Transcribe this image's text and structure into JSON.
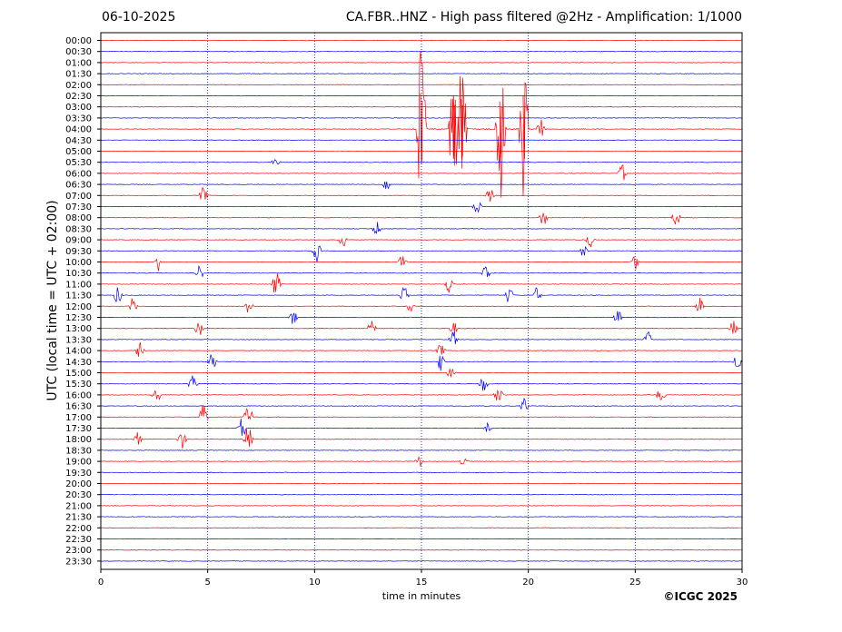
{
  "header": {
    "date": "06-10-2025",
    "title": "CA.FBR..HNZ - High pass filtered @2Hz - Amplification: 1/1000"
  },
  "copyright": "©ICGC 2025",
  "colors": {
    "trace_a": "#ff0000",
    "trace_b": "#0000ff",
    "grid": "#0000aa"
  },
  "chart_data": {
    "type": "line",
    "title": "CA.FBR..HNZ - High pass filtered @2Hz - Amplification: 1/1000",
    "xlabel": "time in minutes",
    "ylabel": "UTC (local time = UTC + 02:00)",
    "xlim": [
      0,
      30
    ],
    "x_ticks": [
      0,
      5,
      10,
      15,
      20,
      25,
      30
    ],
    "vertical_gridlines": [
      5,
      10,
      15,
      20,
      25
    ],
    "rows": [
      "00:00",
      "00:30",
      "01:00",
      "01:30",
      "02:00",
      "02:30",
      "03:00",
      "03:30",
      "04:00",
      "04:30",
      "05:00",
      "05:30",
      "06:00",
      "06:30",
      "07:00",
      "07:30",
      "08:00",
      "08:30",
      "09:00",
      "09:30",
      "10:00",
      "10:30",
      "11:00",
      "11:30",
      "12:00",
      "12:30",
      "13:00",
      "13:30",
      "14:00",
      "14:30",
      "15:00",
      "15:30",
      "16:00",
      "16:30",
      "17:00",
      "17:30",
      "18:00",
      "18:30",
      "19:00",
      "19:30",
      "20:00",
      "20:30",
      "21:00",
      "21:30",
      "22:00",
      "22:30",
      "23:00",
      "23:30"
    ],
    "row_colors": [
      "red",
      "blue"
    ],
    "events": [
      {
        "row": "04:00",
        "t": 15.0,
        "amp": 3.2
      },
      {
        "row": "04:00",
        "t": 16.5,
        "amp": 2.7
      },
      {
        "row": "04:00",
        "t": 16.9,
        "amp": 2.7
      },
      {
        "row": "04:00",
        "t": 18.7,
        "amp": 2.5
      },
      {
        "row": "04:00",
        "t": 19.8,
        "amp": 3.0
      },
      {
        "row": "04:00",
        "t": 20.6,
        "amp": 0.3
      },
      {
        "row": "05:30",
        "t": 8.2,
        "amp": 0.25
      },
      {
        "row": "06:00",
        "t": 24.4,
        "amp": 0.3
      },
      {
        "row": "06:30",
        "t": 13.4,
        "amp": 0.25
      },
      {
        "row": "07:00",
        "t": 4.8,
        "amp": 0.3
      },
      {
        "row": "07:00",
        "t": 18.2,
        "amp": 0.3
      },
      {
        "row": "07:30",
        "t": 17.6,
        "amp": 0.25
      },
      {
        "row": "08:00",
        "t": 20.7,
        "amp": 0.3
      },
      {
        "row": "08:00",
        "t": 26.9,
        "amp": 0.3
      },
      {
        "row": "08:30",
        "t": 12.9,
        "amp": 0.25
      },
      {
        "row": "09:00",
        "t": 11.3,
        "amp": 0.3
      },
      {
        "row": "09:00",
        "t": 22.9,
        "amp": 0.25
      },
      {
        "row": "09:30",
        "t": 10.1,
        "amp": 0.35
      },
      {
        "row": "09:30",
        "t": 22.6,
        "amp": 0.25
      },
      {
        "row": "10:00",
        "t": 2.7,
        "amp": 0.3
      },
      {
        "row": "10:00",
        "t": 14.1,
        "amp": 0.25
      },
      {
        "row": "10:00",
        "t": 25.0,
        "amp": 0.3
      },
      {
        "row": "10:30",
        "t": 4.6,
        "amp": 0.3
      },
      {
        "row": "10:30",
        "t": 18.0,
        "amp": 0.25
      },
      {
        "row": "11:00",
        "t": 8.2,
        "amp": 0.5
      },
      {
        "row": "11:00",
        "t": 16.3,
        "amp": 0.3
      },
      {
        "row": "11:30",
        "t": 0.8,
        "amp": 0.3
      },
      {
        "row": "11:30",
        "t": 14.2,
        "amp": 0.3
      },
      {
        "row": "11:30",
        "t": 19.1,
        "amp": 0.35
      },
      {
        "row": "11:30",
        "t": 20.4,
        "amp": 0.3
      },
      {
        "row": "12:00",
        "t": 1.5,
        "amp": 0.3
      },
      {
        "row": "12:00",
        "t": 6.9,
        "amp": 0.3
      },
      {
        "row": "12:00",
        "t": 14.5,
        "amp": 0.25
      },
      {
        "row": "12:00",
        "t": 28.0,
        "amp": 0.3
      },
      {
        "row": "12:30",
        "t": 9.0,
        "amp": 0.25
      },
      {
        "row": "12:30",
        "t": 24.2,
        "amp": 0.3
      },
      {
        "row": "13:00",
        "t": 4.6,
        "amp": 0.3
      },
      {
        "row": "13:00",
        "t": 12.7,
        "amp": 0.4
      },
      {
        "row": "13:00",
        "t": 16.5,
        "amp": 0.25
      },
      {
        "row": "13:00",
        "t": 29.6,
        "amp": 0.3
      },
      {
        "row": "13:30",
        "t": 16.5,
        "amp": 0.3
      },
      {
        "row": "13:30",
        "t": 25.6,
        "amp": 0.3
      },
      {
        "row": "14:00",
        "t": 1.8,
        "amp": 0.3
      },
      {
        "row": "14:00",
        "t": 15.9,
        "amp": 0.25
      },
      {
        "row": "14:30",
        "t": 5.2,
        "amp": 0.3
      },
      {
        "row": "14:30",
        "t": 15.9,
        "amp": 0.3
      },
      {
        "row": "14:30",
        "t": 29.8,
        "amp": 0.3
      },
      {
        "row": "15:00",
        "t": 16.4,
        "amp": 0.25
      },
      {
        "row": "15:30",
        "t": 4.3,
        "amp": 0.3
      },
      {
        "row": "15:30",
        "t": 17.9,
        "amp": 0.3
      },
      {
        "row": "16:00",
        "t": 2.6,
        "amp": 0.3
      },
      {
        "row": "16:00",
        "t": 18.6,
        "amp": 0.3
      },
      {
        "row": "16:00",
        "t": 26.2,
        "amp": 0.3
      },
      {
        "row": "16:30",
        "t": 19.8,
        "amp": 0.25
      },
      {
        "row": "17:00",
        "t": 4.8,
        "amp": 0.45
      },
      {
        "row": "17:00",
        "t": 6.9,
        "amp": 0.5
      },
      {
        "row": "17:30",
        "t": 6.6,
        "amp": 0.4
      },
      {
        "row": "17:30",
        "t": 18.1,
        "amp": 0.25
      },
      {
        "row": "18:00",
        "t": 1.7,
        "amp": 0.3
      },
      {
        "row": "18:00",
        "t": 3.8,
        "amp": 0.3
      },
      {
        "row": "18:00",
        "t": 6.9,
        "amp": 0.5
      },
      {
        "row": "19:00",
        "t": 14.9,
        "amp": 0.2
      },
      {
        "row": "19:00",
        "t": 17.0,
        "amp": 0.2
      }
    ]
  }
}
